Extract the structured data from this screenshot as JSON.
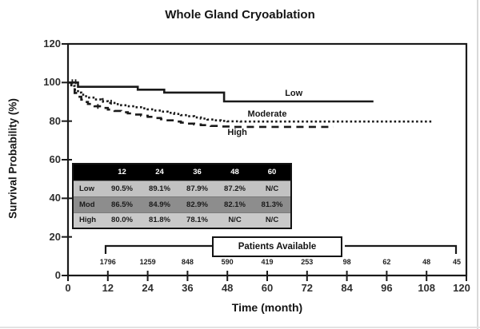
{
  "title": "Whole Gland Cryoablation",
  "chart_data": {
    "type": "line",
    "subtype": "kaplan-meier-step",
    "title": "Whole Gland Cryoablation",
    "xlabel": "Time (month)",
    "ylabel": "Survival Probability (%)",
    "xlim": [
      0,
      120
    ],
    "ylim": [
      0,
      120
    ],
    "xticks": [
      0,
      12,
      24,
      36,
      48,
      60,
      72,
      84,
      96,
      108,
      120
    ],
    "yticks": [
      0,
      20,
      40,
      60,
      80,
      100,
      120
    ],
    "grid": false,
    "legend_position": "inline-labels-on-curves",
    "series": [
      {
        "name": "Low",
        "style": "solid",
        "label_pos": {
          "month": 68,
          "pct": 94.5
        },
        "points": [
          [
            0,
            100
          ],
          [
            2.5,
            100
          ],
          [
            3,
            97.8
          ],
          [
            20.5,
            97.8
          ],
          [
            21,
            96.3
          ],
          [
            28.5,
            96.3
          ],
          [
            29,
            94.8
          ],
          [
            46.5,
            94.8
          ],
          [
            47,
            90.2
          ],
          [
            92,
            90.2
          ]
        ]
      },
      {
        "name": "Moderate",
        "style": "dotted",
        "label_pos": {
          "month": 60,
          "pct": 83.6
        },
        "points": [
          [
            0,
            100
          ],
          [
            1,
            98.2
          ],
          [
            2,
            96.3
          ],
          [
            3,
            94.8
          ],
          [
            4,
            93.7
          ],
          [
            5,
            92.9
          ],
          [
            6,
            92.2
          ],
          [
            8,
            91.2
          ],
          [
            10,
            90.3
          ],
          [
            12,
            89.4
          ],
          [
            14,
            88.8
          ],
          [
            16,
            88.2
          ],
          [
            18,
            87.7
          ],
          [
            20,
            87.2
          ],
          [
            22,
            86.6
          ],
          [
            24,
            86.1
          ],
          [
            26,
            85.5
          ],
          [
            28,
            84.9
          ],
          [
            30,
            84.3
          ],
          [
            32,
            83.7
          ],
          [
            34,
            83.1
          ],
          [
            36,
            82.5
          ],
          [
            38,
            81.9
          ],
          [
            40,
            81.3
          ],
          [
            42,
            80.8
          ],
          [
            44,
            80.4
          ],
          [
            46,
            80.1
          ],
          [
            48,
            79.9
          ],
          [
            52,
            79.8
          ],
          [
            110,
            79.8
          ]
        ]
      },
      {
        "name": "High",
        "style": "dashed",
        "label_pos": {
          "month": 51,
          "pct": 74.0
        },
        "points": [
          [
            0,
            100
          ],
          [
            1,
            97.2
          ],
          [
            2,
            94.6
          ],
          [
            3,
            92.6
          ],
          [
            4,
            91.1
          ],
          [
            5,
            89.9
          ],
          [
            6,
            88.9
          ],
          [
            8,
            87.7
          ],
          [
            10,
            86.8
          ],
          [
            12,
            86
          ],
          [
            14,
            85.3
          ],
          [
            16,
            84.6
          ],
          [
            18,
            84
          ],
          [
            20,
            83.4
          ],
          [
            22,
            82.8
          ],
          [
            24,
            82.2
          ],
          [
            26,
            81.6
          ],
          [
            28,
            81
          ],
          [
            30,
            80.4
          ],
          [
            32,
            79.8
          ],
          [
            34,
            79.2
          ],
          [
            36,
            78.7
          ],
          [
            38,
            78.3
          ],
          [
            40,
            77.9
          ],
          [
            43,
            77.5
          ],
          [
            46,
            77.2
          ],
          [
            50,
            77
          ],
          [
            80,
            77
          ]
        ]
      }
    ],
    "censor_marks": [
      [
        1.3,
        100
      ],
      [
        2.3,
        100
      ],
      [
        10.5,
        90.3
      ],
      [
        13,
        89.4
      ],
      [
        9,
        87.2
      ]
    ]
  },
  "risk_table": {
    "header": [
      "",
      "12",
      "24",
      "36",
      "48",
      "60"
    ],
    "header_bg": "#000000",
    "header_color": "#ffffff",
    "rows": [
      {
        "label": "Low",
        "bg": "#c2c2c2",
        "values": [
          "90.5%",
          "89.1%",
          "87.9%",
          "87.2%",
          "N/C"
        ]
      },
      {
        "label": "Mod",
        "bg": "#8d8d8d",
        "values": [
          "86.5%",
          "84.9%",
          "82.9%",
          "82.1%",
          "81.3%"
        ]
      },
      {
        "label": "High",
        "bg": "#c9c9c9",
        "values": [
          "80.0%",
          "81.8%",
          "78.1%",
          "N/C",
          "N/C"
        ]
      }
    ]
  },
  "patients_available": {
    "label": "Patients Available",
    "months": [
      12,
      24,
      36,
      48,
      60,
      72,
      84,
      96,
      108,
      120
    ],
    "counts": [
      "1796",
      "1259",
      "848",
      "590",
      "419",
      "253",
      "98",
      "62",
      "48",
      "45"
    ]
  },
  "colors": {
    "line": "#1a1a1a",
    "tick_text": "#2f2f2f",
    "title_text": "#151515"
  }
}
